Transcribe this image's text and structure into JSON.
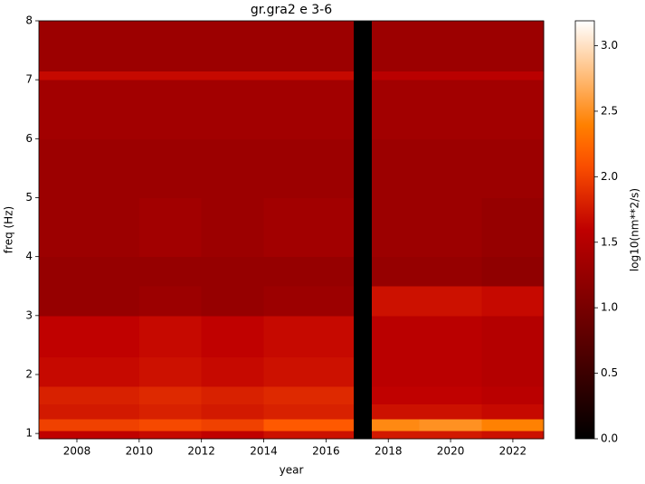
{
  "chart_data": {
    "type": "heatmap",
    "title": "gr.gra2 e 3-6",
    "x_label": "year",
    "y_label": "freq (Hz)",
    "colorbar_label": "log10(nm**2/s)",
    "colormap": "gist_heat",
    "xbins": [
      2006.78,
      2008,
      2010,
      2012,
      2014,
      2016.89,
      2017.47,
      2019,
      2021,
      2022.99
    ],
    "ybins": [
      0.91,
      1.05,
      1.25,
      1.5,
      1.8,
      2.3,
      3.0,
      3.5,
      4.0,
      5.0,
      6.0,
      7.0,
      7.15,
      8.0
    ],
    "z": [
      [
        1.6,
        1.6,
        1.65,
        1.6,
        1.7,
        0,
        1.75,
        1.75,
        1.7
      ],
      [
        2.0,
        2.0,
        2.05,
        2.0,
        2.15,
        0,
        2.45,
        2.5,
        2.4
      ],
      [
        1.75,
        1.75,
        1.8,
        1.75,
        1.8,
        0,
        1.7,
        1.7,
        1.65
      ],
      [
        1.8,
        1.8,
        1.85,
        1.8,
        1.85,
        0,
        1.6,
        1.6,
        1.55
      ],
      [
        1.65,
        1.65,
        1.7,
        1.65,
        1.7,
        0,
        1.55,
        1.55,
        1.5
      ],
      [
        1.6,
        1.6,
        1.65,
        1.6,
        1.65,
        0,
        1.55,
        1.55,
        1.5
      ],
      [
        1.25,
        1.25,
        1.3,
        1.25,
        1.3,
        0,
        1.7,
        1.7,
        1.65
      ],
      [
        1.25,
        1.25,
        1.25,
        1.25,
        1.25,
        0,
        1.25,
        1.25,
        1.2
      ],
      [
        1.3,
        1.3,
        1.35,
        1.3,
        1.35,
        0,
        1.3,
        1.3,
        1.25
      ],
      [
        1.3,
        1.3,
        1.3,
        1.3,
        1.3,
        0,
        1.3,
        1.3,
        1.3
      ],
      [
        1.35,
        1.35,
        1.35,
        1.35,
        1.35,
        0,
        1.35,
        1.35,
        1.35
      ],
      [
        1.65,
        1.65,
        1.65,
        1.65,
        1.65,
        0,
        1.55,
        1.55,
        1.55
      ],
      [
        1.3,
        1.3,
        1.3,
        1.3,
        1.3,
        0,
        1.3,
        1.3,
        1.3
      ]
    ],
    "xlim": [
      2006.78,
      2022.99
    ],
    "ylim": [
      0.91,
      8
    ],
    "xticks": [
      2008,
      2010,
      2012,
      2014,
      2016,
      2018,
      2020,
      2022
    ],
    "yticks": [
      1,
      2,
      3,
      4,
      5,
      6,
      7,
      8
    ],
    "clim": [
      0,
      3.19
    ],
    "cticks": [
      {
        "value": 0,
        "label": "0.0"
      },
      0.5,
      {
        "value": 1,
        "label": "1.0"
      },
      1.5,
      {
        "value": 2,
        "label": "2.0"
      },
      2.5,
      {
        "value": 3,
        "label": "3.0"
      }
    ]
  }
}
